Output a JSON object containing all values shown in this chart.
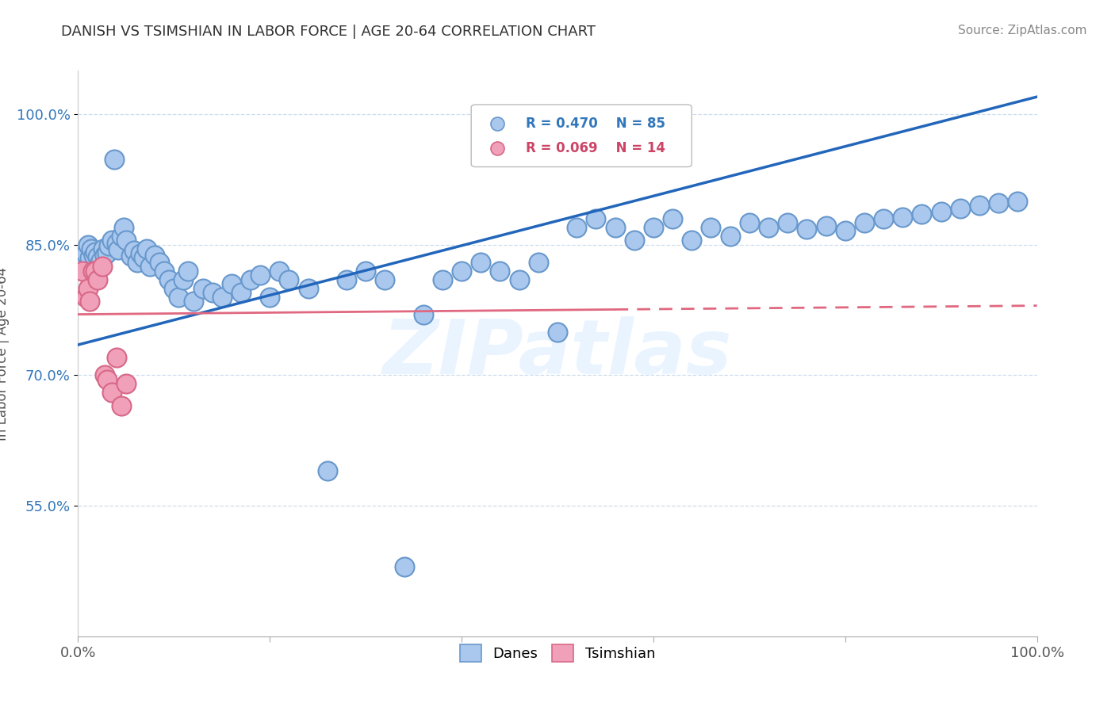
{
  "title": "DANISH VS TSIMSHIAN IN LABOR FORCE | AGE 20-64 CORRELATION CHART",
  "source": "Source: ZipAtlas.com",
  "ylabel": "In Labor Force | Age 20-64",
  "xlim": [
    0.0,
    1.0
  ],
  "ylim": [
    0.4,
    1.05
  ],
  "y_ticks": [
    1.0,
    0.85,
    0.7,
    0.55
  ],
  "y_tick_labels": [
    "100.0%",
    "85.0%",
    "70.0%",
    "55.0%"
  ],
  "danes_color": "#aac8ee",
  "danes_edge_color": "#6898cc",
  "tsimshian_color": "#f0a0b8",
  "tsimshian_edge_color": "#d86888",
  "danes_line_color": "#2266bb",
  "tsimshian_line_color": "#e06880",
  "danes_trend_x0": 0.0,
  "danes_trend_y0": 0.735,
  "danes_trend_x1": 1.0,
  "danes_trend_y1": 1.02,
  "tsim_trend_x0": 0.0,
  "tsim_trend_y0": 0.77,
  "tsim_trend_x1": 1.0,
  "tsim_trend_y1": 0.78,
  "tsim_trend_solid_end": 0.56,
  "watermark_text": "ZIPatlas",
  "danes_x": [
    0.005,
    0.008,
    0.01,
    0.012,
    0.014,
    0.016,
    0.018,
    0.02,
    0.022,
    0.024,
    0.026,
    0.028,
    0.03,
    0.032,
    0.035,
    0.038,
    0.04,
    0.042,
    0.045,
    0.048,
    0.05,
    0.055,
    0.058,
    0.062,
    0.065,
    0.068,
    0.072,
    0.075,
    0.08,
    0.085,
    0.09,
    0.095,
    0.1,
    0.105,
    0.11,
    0.115,
    0.12,
    0.13,
    0.14,
    0.15,
    0.16,
    0.17,
    0.18,
    0.19,
    0.2,
    0.21,
    0.22,
    0.24,
    0.26,
    0.28,
    0.3,
    0.32,
    0.34,
    0.36,
    0.38,
    0.4,
    0.42,
    0.44,
    0.46,
    0.48,
    0.5,
    0.52,
    0.54,
    0.56,
    0.58,
    0.6,
    0.62,
    0.64,
    0.66,
    0.68,
    0.7,
    0.72,
    0.74,
    0.76,
    0.78,
    0.8,
    0.82,
    0.84,
    0.86,
    0.88,
    0.9,
    0.92,
    0.94,
    0.96,
    0.98
  ],
  "danes_y": [
    0.83,
    0.84,
    0.85,
    0.835,
    0.845,
    0.838,
    0.842,
    0.836,
    0.828,
    0.832,
    0.845,
    0.838,
    0.841,
    0.849,
    0.855,
    0.948,
    0.852,
    0.844,
    0.86,
    0.87,
    0.855,
    0.837,
    0.843,
    0.83,
    0.84,
    0.835,
    0.845,
    0.825,
    0.838,
    0.83,
    0.82,
    0.81,
    0.8,
    0.79,
    0.81,
    0.82,
    0.785,
    0.8,
    0.795,
    0.79,
    0.805,
    0.795,
    0.81,
    0.815,
    0.79,
    0.82,
    0.81,
    0.8,
    0.59,
    0.81,
    0.82,
    0.81,
    0.48,
    0.77,
    0.81,
    0.82,
    0.83,
    0.82,
    0.81,
    0.83,
    0.75,
    0.87,
    0.88,
    0.87,
    0.855,
    0.87,
    0.88,
    0.855,
    0.87,
    0.86,
    0.875,
    0.87,
    0.875,
    0.868,
    0.872,
    0.866,
    0.875,
    0.88,
    0.882,
    0.885,
    0.888,
    0.892,
    0.895,
    0.898,
    0.9
  ],
  "tsimshian_x": [
    0.005,
    0.008,
    0.01,
    0.012,
    0.015,
    0.018,
    0.02,
    0.025,
    0.028,
    0.03,
    0.035,
    0.04,
    0.045,
    0.05
  ],
  "tsimshian_y": [
    0.82,
    0.79,
    0.8,
    0.785,
    0.82,
    0.82,
    0.81,
    0.825,
    0.7,
    0.695,
    0.68,
    0.72,
    0.665,
    0.69
  ]
}
